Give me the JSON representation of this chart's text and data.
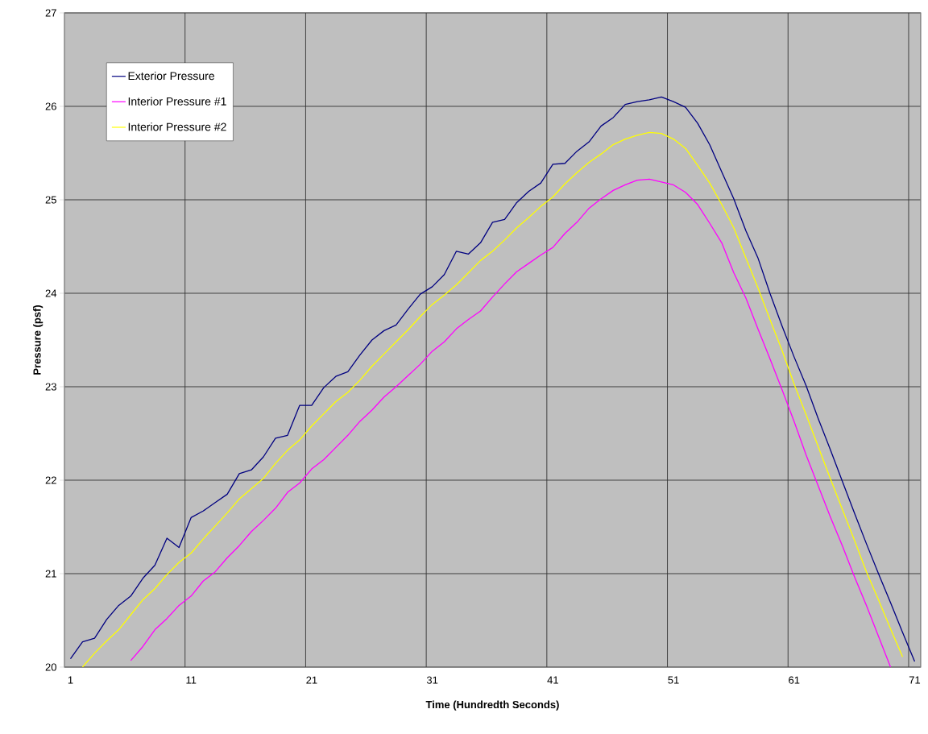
{
  "chart_data": {
    "type": "line",
    "xlabel": "Time (Hundredth Seconds)",
    "ylabel": "Pressure (psf)",
    "categories": [
      "1",
      null,
      null,
      null,
      null,
      null,
      null,
      null,
      null,
      null,
      "11",
      null,
      null,
      null,
      null,
      null,
      null,
      null,
      null,
      null,
      "21",
      null,
      null,
      null,
      null,
      null,
      null,
      null,
      null,
      null,
      "31",
      null,
      null,
      null,
      null,
      null,
      null,
      null,
      null,
      null,
      "41",
      null,
      null,
      null,
      null,
      null,
      null,
      null,
      null,
      null,
      "51",
      null,
      null,
      null,
      null,
      null,
      null,
      null,
      null,
      null,
      "61",
      null,
      null,
      null,
      null,
      null,
      null,
      null,
      null,
      null,
      "71"
    ],
    "ylim": [
      20,
      27
    ],
    "yticks": [
      20,
      21,
      22,
      23,
      24,
      25,
      26,
      27
    ],
    "grid": true,
    "legend": "top left",
    "marker": "none",
    "series": [
      {
        "name": "Exterior Pressure",
        "color": "#000080",
        "values": [
          20.09,
          20.27,
          20.31,
          20.51,
          20.66,
          20.76,
          20.95,
          21.09,
          21.38,
          21.28,
          21.6,
          21.67,
          21.76,
          21.85,
          22.07,
          22.11,
          22.25,
          22.45,
          22.48,
          22.8,
          22.8,
          22.99,
          23.11,
          23.16,
          23.34,
          23.5,
          23.6,
          23.66,
          23.83,
          23.99,
          24.07,
          24.2,
          24.45,
          24.42,
          24.54,
          24.76,
          24.79,
          24.97,
          25.09,
          25.18,
          25.38,
          25.39,
          25.52,
          25.62,
          25.79,
          25.88,
          26.02,
          26.05,
          26.07,
          26.1,
          26.05,
          25.99,
          25.82,
          25.59,
          25.3,
          25.01,
          24.67,
          24.38,
          24.0,
          23.65,
          23.32,
          23.01,
          22.66,
          22.33,
          21.99,
          21.65,
          21.32,
          21.0,
          20.69,
          20.37,
          20.06
        ]
      },
      {
        "name": "Interior Pressure #1",
        "color": "#ff00ff",
        "values": [
          null,
          null,
          null,
          null,
          null,
          20.07,
          20.22,
          20.4,
          20.52,
          20.66,
          20.76,
          20.92,
          21.02,
          21.17,
          21.3,
          21.45,
          21.57,
          21.7,
          21.87,
          21.97,
          22.12,
          22.22,
          22.35,
          22.48,
          22.63,
          22.75,
          22.89,
          23.0,
          23.12,
          23.24,
          23.38,
          23.48,
          23.62,
          23.72,
          23.81,
          23.96,
          24.1,
          24.23,
          24.32,
          24.41,
          24.49,
          24.64,
          24.76,
          24.91,
          25.01,
          25.1,
          25.16,
          25.21,
          25.22,
          25.19,
          25.16,
          25.08,
          24.95,
          24.75,
          24.54,
          24.22,
          23.95,
          23.62,
          23.3,
          22.97,
          22.63,
          22.27,
          21.94,
          21.61,
          21.3,
          20.97,
          20.66,
          20.33,
          20.0,
          null,
          null
        ]
      },
      {
        "name": "Interior Pressure #2",
        "color": "#ffff00",
        "values": [
          null,
          20.0,
          20.15,
          20.28,
          20.4,
          20.56,
          20.72,
          20.84,
          20.99,
          21.12,
          21.22,
          21.37,
          21.51,
          21.65,
          21.8,
          21.91,
          22.02,
          22.18,
          22.32,
          22.43,
          22.58,
          22.71,
          22.84,
          22.94,
          23.07,
          23.22,
          23.35,
          23.48,
          23.61,
          23.75,
          23.88,
          23.98,
          24.09,
          24.22,
          24.35,
          24.45,
          24.57,
          24.7,
          24.81,
          24.93,
          25.03,
          25.17,
          25.29,
          25.4,
          25.49,
          25.59,
          25.65,
          25.69,
          25.72,
          25.71,
          25.65,
          25.55,
          25.37,
          25.18,
          24.95,
          24.7,
          24.38,
          24.06,
          23.72,
          23.39,
          23.03,
          22.7,
          22.36,
          22.02,
          21.69,
          21.36,
          21.02,
          20.72,
          20.41,
          20.11,
          null
        ]
      }
    ]
  }
}
